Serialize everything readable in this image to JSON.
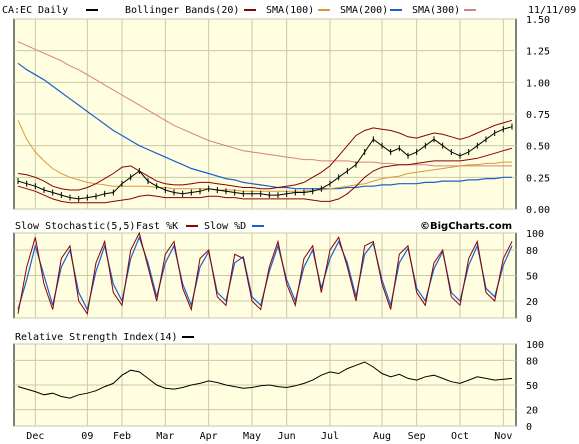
{
  "chart_data": [
    {
      "type": "line",
      "panel": "price",
      "symbol": "CA:EC",
      "frequency": "Daily",
      "date_label": "11/11/09",
      "legend": [
        {
          "name": "Daily",
          "color": "#000000"
        },
        {
          "name": "Bollinger Bands(20)",
          "color": "#8b0000"
        },
        {
          "name": "SMA(100)",
          "color": "#d69a3a"
        },
        {
          "name": "SMA(200)",
          "color": "#1a5fd1"
        },
        {
          "name": "SMA(300)",
          "color": "#d98080"
        }
      ],
      "ylim": [
        0,
        1.5
      ],
      "yticks": [
        "1.50",
        "1.25",
        "1.00",
        "0.75",
        "0.50",
        "0.25",
        "0.00"
      ],
      "x_categories": [
        "Dec",
        "09",
        "Feb",
        "Mar",
        "Apr",
        "May",
        "Jun",
        "Jul",
        "Aug",
        "Sep",
        "Oct",
        "Nov"
      ],
      "x_index": [
        2,
        8,
        12,
        17,
        22,
        27,
        31,
        36,
        42,
        46,
        51,
        56
      ],
      "price": [
        0.22,
        0.2,
        0.18,
        0.15,
        0.13,
        0.11,
        0.09,
        0.08,
        0.09,
        0.1,
        0.12,
        0.13,
        0.2,
        0.25,
        0.3,
        0.22,
        0.18,
        0.15,
        0.13,
        0.12,
        0.13,
        0.14,
        0.16,
        0.15,
        0.14,
        0.13,
        0.12,
        0.12,
        0.12,
        0.11,
        0.11,
        0.12,
        0.13,
        0.13,
        0.14,
        0.16,
        0.2,
        0.25,
        0.3,
        0.35,
        0.45,
        0.55,
        0.5,
        0.45,
        0.48,
        0.42,
        0.45,
        0.5,
        0.55,
        0.5,
        0.45,
        0.42,
        0.45,
        0.5,
        0.55,
        0.6,
        0.63,
        0.65
      ],
      "bb_upper": [
        0.28,
        0.27,
        0.25,
        0.22,
        0.18,
        0.16,
        0.15,
        0.15,
        0.17,
        0.2,
        0.24,
        0.28,
        0.33,
        0.34,
        0.3,
        0.26,
        0.22,
        0.2,
        0.19,
        0.19,
        0.2,
        0.21,
        0.21,
        0.2,
        0.19,
        0.18,
        0.17,
        0.17,
        0.16,
        0.16,
        0.17,
        0.18,
        0.19,
        0.21,
        0.25,
        0.29,
        0.34,
        0.42,
        0.5,
        0.58,
        0.62,
        0.64,
        0.63,
        0.62,
        0.6,
        0.57,
        0.56,
        0.58,
        0.6,
        0.59,
        0.57,
        0.55,
        0.57,
        0.6,
        0.63,
        0.66,
        0.68,
        0.7
      ],
      "bb_lower": [
        0.18,
        0.16,
        0.14,
        0.11,
        0.08,
        0.06,
        0.05,
        0.05,
        0.05,
        0.05,
        0.05,
        0.06,
        0.07,
        0.08,
        0.1,
        0.11,
        0.1,
        0.09,
        0.09,
        0.09,
        0.09,
        0.09,
        0.1,
        0.1,
        0.09,
        0.09,
        0.08,
        0.08,
        0.08,
        0.08,
        0.08,
        0.08,
        0.08,
        0.08,
        0.07,
        0.06,
        0.06,
        0.08,
        0.12,
        0.18,
        0.25,
        0.3,
        0.33,
        0.34,
        0.35,
        0.35,
        0.36,
        0.37,
        0.38,
        0.38,
        0.38,
        0.38,
        0.39,
        0.4,
        0.42,
        0.44,
        0.46,
        0.48
      ],
      "sma100": [
        0.7,
        0.55,
        0.45,
        0.38,
        0.32,
        0.28,
        0.25,
        0.23,
        0.21,
        0.2,
        0.19,
        0.18,
        0.18,
        0.18,
        0.18,
        0.18,
        0.17,
        0.17,
        0.16,
        0.16,
        0.16,
        0.16,
        0.16,
        0.15,
        0.15,
        0.15,
        0.14,
        0.14,
        0.14,
        0.14,
        0.14,
        0.14,
        0.14,
        0.14,
        0.15,
        0.15,
        0.16,
        0.17,
        0.18,
        0.19,
        0.2,
        0.22,
        0.24,
        0.25,
        0.26,
        0.28,
        0.29,
        0.3,
        0.31,
        0.32,
        0.33,
        0.34,
        0.35,
        0.35,
        0.36,
        0.36,
        0.37,
        0.37
      ],
      "sma200": [
        1.15,
        1.1,
        1.06,
        1.02,
        0.97,
        0.92,
        0.87,
        0.82,
        0.77,
        0.72,
        0.67,
        0.62,
        0.58,
        0.54,
        0.5,
        0.47,
        0.44,
        0.41,
        0.38,
        0.35,
        0.32,
        0.3,
        0.28,
        0.26,
        0.24,
        0.23,
        0.21,
        0.2,
        0.19,
        0.18,
        0.17,
        0.17,
        0.16,
        0.16,
        0.16,
        0.16,
        0.16,
        0.16,
        0.17,
        0.17,
        0.18,
        0.18,
        0.19,
        0.19,
        0.2,
        0.2,
        0.2,
        0.21,
        0.21,
        0.22,
        0.22,
        0.22,
        0.23,
        0.23,
        0.24,
        0.24,
        0.25,
        0.25
      ],
      "sma300": [
        1.32,
        1.29,
        1.26,
        1.23,
        1.2,
        1.17,
        1.13,
        1.1,
        1.06,
        1.02,
        0.98,
        0.94,
        0.9,
        0.86,
        0.82,
        0.78,
        0.74,
        0.7,
        0.66,
        0.63,
        0.6,
        0.57,
        0.54,
        0.52,
        0.5,
        0.48,
        0.46,
        0.45,
        0.44,
        0.43,
        0.42,
        0.41,
        0.4,
        0.39,
        0.39,
        0.38,
        0.38,
        0.38,
        0.38,
        0.37,
        0.37,
        0.37,
        0.36,
        0.36,
        0.35,
        0.35,
        0.35,
        0.35,
        0.34,
        0.34,
        0.34,
        0.34,
        0.34,
        0.34,
        0.34,
        0.34,
        0.34,
        0.34
      ]
    },
    {
      "type": "line",
      "panel": "stochastic",
      "title": "Slow Stochastic(5,5)",
      "legend": [
        {
          "name": "Fast %K",
          "color": "#8b0000"
        },
        {
          "name": "Slow %D",
          "color": "#1a5fd1"
        }
      ],
      "ylim": [
        0,
        100
      ],
      "yticks": [
        "100",
        "80",
        "50",
        "20",
        "0"
      ],
      "fast_k": [
        5,
        60,
        95,
        40,
        10,
        70,
        85,
        20,
        5,
        65,
        90,
        30,
        15,
        80,
        100,
        60,
        20,
        75,
        90,
        35,
        10,
        70,
        80,
        25,
        15,
        75,
        70,
        20,
        10,
        60,
        90,
        40,
        15,
        70,
        85,
        30,
        80,
        95,
        60,
        20,
        85,
        90,
        40,
        10,
        75,
        85,
        30,
        15,
        65,
        80,
        25,
        15,
        70,
        90,
        30,
        20,
        70,
        90
      ],
      "slow_d": [
        10,
        45,
        85,
        50,
        15,
        60,
        80,
        30,
        10,
        55,
        85,
        40,
        20,
        70,
        95,
        65,
        25,
        65,
        85,
        40,
        15,
        60,
        78,
        30,
        20,
        65,
        72,
        25,
        15,
        55,
        85,
        45,
        20,
        60,
        80,
        35,
        70,
        90,
        65,
        25,
        75,
        88,
        45,
        15,
        65,
        82,
        35,
        20,
        58,
        78,
        30,
        20,
        62,
        85,
        35,
        25,
        62,
        85
      ]
    },
    {
      "type": "line",
      "panel": "rsi",
      "title": "Relative Strength Index(14)",
      "legend": [
        {
          "name": "",
          "color": "#000000"
        }
      ],
      "ylim": [
        0,
        100
      ],
      "yticks": [
        "100",
        "80",
        "50",
        "20",
        "0"
      ],
      "rsi": [
        48,
        45,
        42,
        38,
        40,
        36,
        34,
        38,
        40,
        43,
        48,
        52,
        62,
        68,
        66,
        58,
        50,
        46,
        45,
        47,
        50,
        52,
        55,
        53,
        50,
        48,
        46,
        47,
        49,
        50,
        48,
        47,
        49,
        52,
        56,
        62,
        66,
        64,
        70,
        74,
        78,
        72,
        64,
        60,
        63,
        58,
        56,
        60,
        62,
        58,
        54,
        52,
        56,
        60,
        58,
        56,
        57,
        58
      ]
    }
  ],
  "panel2_watermark": "©BigCharts.com",
  "icons": {
    "legend_dash": "legend-dash-icon"
  }
}
